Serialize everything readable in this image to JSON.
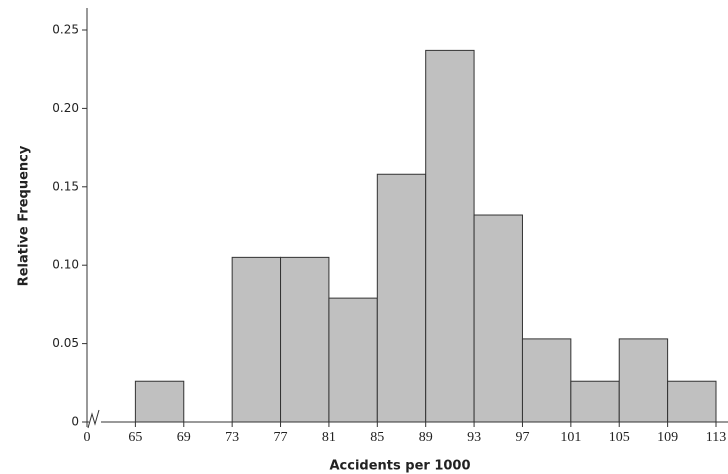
{
  "chart_data": {
    "type": "histogram",
    "x_label": "Accidents per 1000",
    "y_label": "Relative Frequency",
    "bins": [
      65,
      69,
      73,
      77,
      81,
      85,
      89,
      93,
      97,
      101,
      105,
      109,
      113
    ],
    "values": [
      0.026,
      0,
      0.105,
      0.105,
      0.079,
      0.158,
      0.237,
      0.132,
      0.053,
      0.026,
      0.053,
      0.026
    ],
    "color": "#c0c0c0",
    "edge_color": "#333333",
    "xlim": [
      61,
      113
    ],
    "xticks": [
      0,
      65,
      69,
      73,
      77,
      81,
      85,
      89,
      93,
      97,
      101,
      105,
      109,
      113
    ],
    "axis_break": true,
    "ylim": [
      0,
      0.25
    ],
    "yticks": [
      0,
      0.05,
      {
        "value": 0.1,
        "label": "0.10"
      },
      0.15,
      {
        "value": 0.2,
        "label": "0.20"
      },
      0.25
    ],
    "grid": false
  }
}
